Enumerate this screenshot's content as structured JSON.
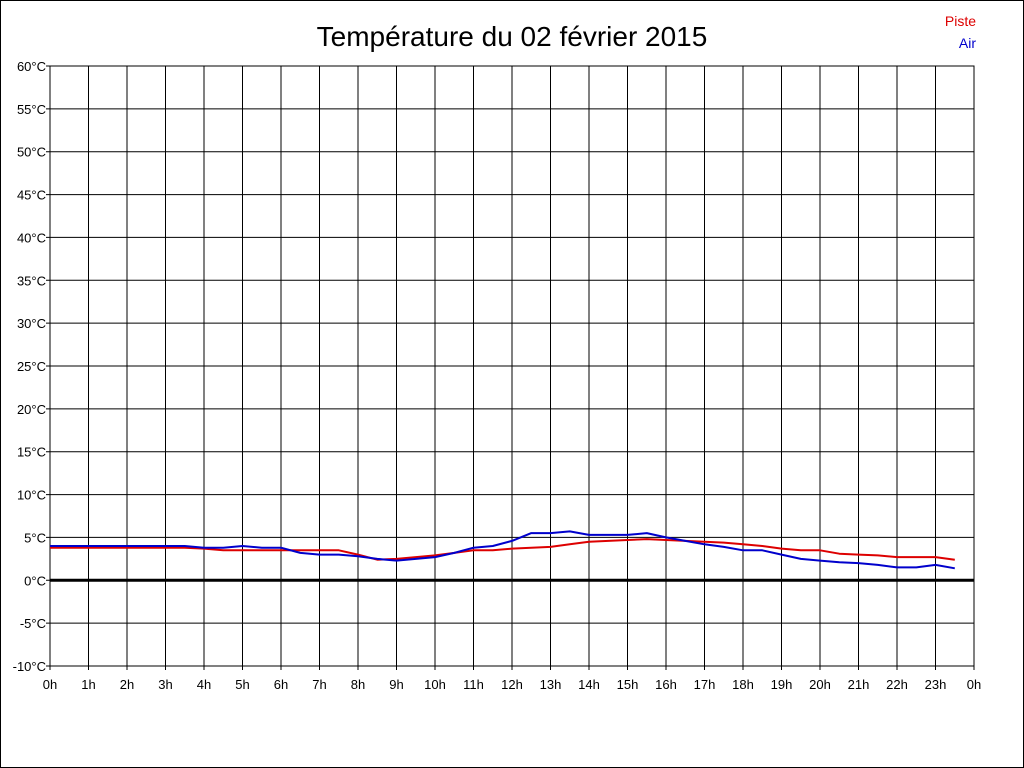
{
  "chart_data": {
    "type": "line",
    "title": "Température du 02 février 2015",
    "xlabel": "",
    "ylabel": "",
    "x_ticks": [
      "0h",
      "1h",
      "2h",
      "3h",
      "4h",
      "5h",
      "6h",
      "7h",
      "8h",
      "9h",
      "10h",
      "11h",
      "12h",
      "13h",
      "14h",
      "15h",
      "16h",
      "17h",
      "18h",
      "19h",
      "20h",
      "21h",
      "22h",
      "23h",
      "0h"
    ],
    "y_ticks": [
      "-10°C",
      "-5°C",
      "0°C",
      "5°C",
      "10°C",
      "15°C",
      "20°C",
      "25°C",
      "30°C",
      "35°C",
      "40°C",
      "45°C",
      "50°C",
      "55°C",
      "60°C"
    ],
    "xlim": [
      0,
      24
    ],
    "ylim": [
      -10,
      60
    ],
    "grid": true,
    "zero_line": true,
    "legend_position": "top-right",
    "series": [
      {
        "name": "Piste",
        "color": "#dd0000",
        "points": [
          [
            0,
            3.8
          ],
          [
            0.5,
            3.8
          ],
          [
            1,
            3.8
          ],
          [
            1.5,
            3.8
          ],
          [
            2,
            3.8
          ],
          [
            2.5,
            3.8
          ],
          [
            3,
            3.8
          ],
          [
            3.5,
            3.8
          ],
          [
            4,
            3.7
          ],
          [
            4.5,
            3.5
          ],
          [
            5,
            3.5
          ],
          [
            5.5,
            3.5
          ],
          [
            6,
            3.5
          ],
          [
            6.5,
            3.5
          ],
          [
            7,
            3.5
          ],
          [
            7.5,
            3.5
          ],
          [
            8,
            3.0
          ],
          [
            8.5,
            2.4
          ],
          [
            9,
            2.5
          ],
          [
            9.5,
            2.7
          ],
          [
            10,
            2.9
          ],
          [
            10.5,
            3.2
          ],
          [
            11,
            3.5
          ],
          [
            11.5,
            3.5
          ],
          [
            12,
            3.7
          ],
          [
            12.5,
            3.8
          ],
          [
            13,
            3.9
          ],
          [
            13.5,
            4.2
          ],
          [
            14,
            4.5
          ],
          [
            14.5,
            4.6
          ],
          [
            15,
            4.7
          ],
          [
            15.5,
            4.8
          ],
          [
            16,
            4.7
          ],
          [
            16.5,
            4.6
          ],
          [
            17,
            4.5
          ],
          [
            17.5,
            4.4
          ],
          [
            18,
            4.2
          ],
          [
            18.5,
            4.0
          ],
          [
            19,
            3.7
          ],
          [
            19.5,
            3.5
          ],
          [
            20,
            3.5
          ],
          [
            20.5,
            3.1
          ],
          [
            21,
            3.0
          ],
          [
            21.5,
            2.9
          ],
          [
            22,
            2.7
          ],
          [
            22.5,
            2.7
          ],
          [
            23,
            2.7
          ],
          [
            23.5,
            2.4
          ]
        ]
      },
      {
        "name": "Air",
        "color": "#0000cc",
        "points": [
          [
            0,
            4.0
          ],
          [
            0.5,
            4.0
          ],
          [
            1,
            4.0
          ],
          [
            1.5,
            4.0
          ],
          [
            2,
            4.0
          ],
          [
            2.5,
            4.0
          ],
          [
            3,
            4.0
          ],
          [
            3.5,
            4.0
          ],
          [
            4,
            3.8
          ],
          [
            4.5,
            3.8
          ],
          [
            5,
            4.0
          ],
          [
            5.5,
            3.8
          ],
          [
            6,
            3.8
          ],
          [
            6.5,
            3.2
          ],
          [
            7,
            3.0
          ],
          [
            7.5,
            3.0
          ],
          [
            8,
            2.8
          ],
          [
            8.5,
            2.5
          ],
          [
            9,
            2.3
          ],
          [
            9.5,
            2.5
          ],
          [
            10,
            2.7
          ],
          [
            10.5,
            3.2
          ],
          [
            11,
            3.8
          ],
          [
            11.5,
            4.0
          ],
          [
            12,
            4.6
          ],
          [
            12.5,
            5.5
          ],
          [
            13,
            5.5
          ],
          [
            13.5,
            5.7
          ],
          [
            14,
            5.3
          ],
          [
            14.5,
            5.3
          ],
          [
            15,
            5.3
          ],
          [
            15.5,
            5.5
          ],
          [
            16,
            5.0
          ],
          [
            16.5,
            4.6
          ],
          [
            17,
            4.2
          ],
          [
            17.5,
            3.9
          ],
          [
            18,
            3.5
          ],
          [
            18.5,
            3.5
          ],
          [
            19,
            3.0
          ],
          [
            19.5,
            2.5
          ],
          [
            20,
            2.3
          ],
          [
            20.5,
            2.1
          ],
          [
            21,
            2.0
          ],
          [
            21.5,
            1.8
          ],
          [
            22,
            1.5
          ],
          [
            22.5,
            1.5
          ],
          [
            23,
            1.8
          ],
          [
            23.5,
            1.4
          ]
        ]
      }
    ]
  }
}
